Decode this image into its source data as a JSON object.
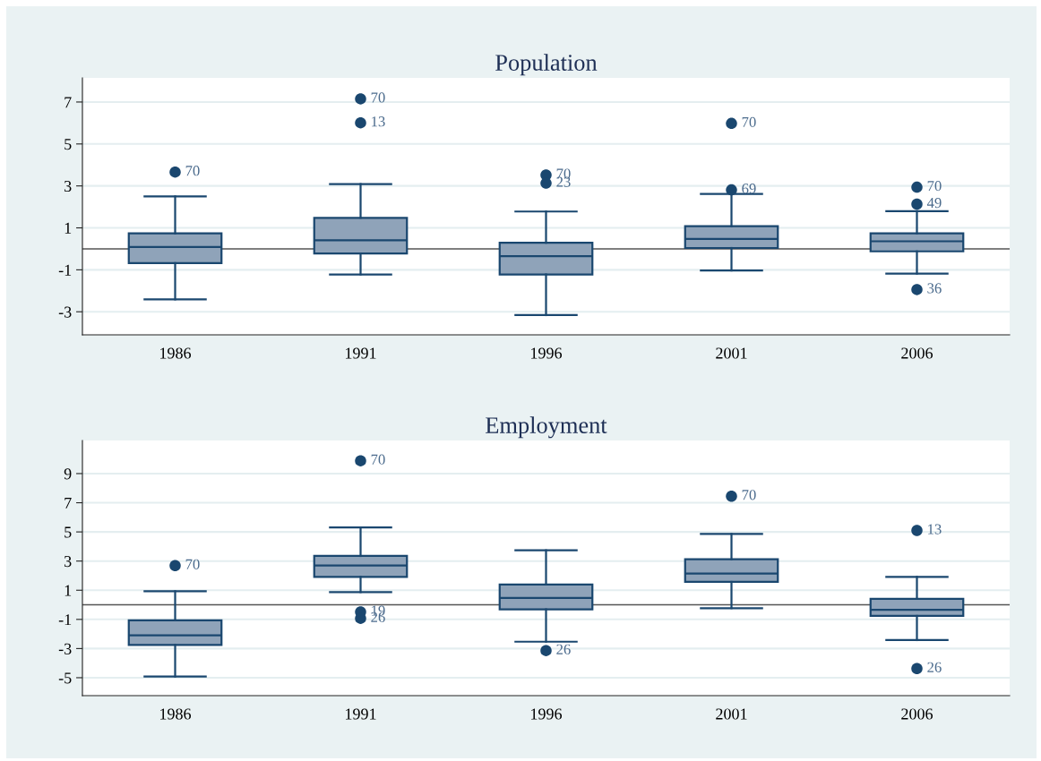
{
  "chart_data": [
    {
      "type": "box",
      "title": "Population",
      "categories": [
        "1986",
        "1991",
        "1996",
        "2001",
        "2006"
      ],
      "color": "#8fa3b9",
      "boxes": [
        {
          "low": -2.41,
          "q1": -0.68,
          "median": 0.09,
          "q3": 0.74,
          "high": 2.5,
          "outliers": [
            3.66
          ]
        },
        {
          "low": -1.22,
          "q1": -0.22,
          "median": 0.41,
          "q3": 1.48,
          "high": 3.09,
          "outliers": [
            7.15,
            6.01
          ]
        },
        {
          "low": -3.16,
          "q1": -1.22,
          "median": -0.35,
          "q3": 0.29,
          "high": 1.78,
          "outliers": [
            3.52,
            3.13
          ]
        },
        {
          "low": -1.03,
          "q1": 0.04,
          "median": 0.47,
          "q3": 1.08,
          "high": 2.62,
          "outliers": [
            5.98,
            2.81
          ]
        },
        {
          "low": -1.18,
          "q1": -0.12,
          "median": 0.36,
          "q3": 0.74,
          "high": 1.8,
          "outliers": [
            2.94,
            2.13,
            -1.94
          ]
        }
      ],
      "ylim": [
        -4.1,
        8.15
      ],
      "yticks": [
        -3,
        -1,
        1,
        3,
        5,
        7
      ],
      "grid": "y",
      "ref_lines": [
        {
          "axis": "y",
          "value": 0,
          "color": "#555555"
        }
      ],
      "annotations": [
        "70",
        "70",
        "13",
        "70",
        "23",
        "70",
        "69",
        "70",
        "49",
        "36"
      ]
    },
    {
      "type": "box",
      "title": "Employment",
      "categories": [
        "1986",
        "1991",
        "1996",
        "2001",
        "2006"
      ],
      "color": "#8fa3b9",
      "boxes": [
        {
          "low": -4.92,
          "q1": -2.75,
          "median": -2.09,
          "q3": -1.06,
          "high": 0.93,
          "outliers": [
            2.69
          ]
        },
        {
          "low": 0.87,
          "q1": 1.92,
          "median": 2.69,
          "q3": 3.35,
          "high": 5.3,
          "outliers": [
            9.88,
            -0.49,
            -0.93
          ]
        },
        {
          "low": -2.53,
          "q1": -0.31,
          "median": 0.47,
          "q3": 1.39,
          "high": 3.74,
          "outliers": [
            -3.14
          ]
        },
        {
          "low": -0.23,
          "q1": 1.57,
          "median": 2.14,
          "q3": 3.13,
          "high": 4.86,
          "outliers": [
            7.45
          ]
        },
        {
          "low": -2.42,
          "q1": -0.76,
          "median": -0.34,
          "q3": 0.41,
          "high": 1.92,
          "outliers": [
            5.1,
            -4.37
          ]
        }
      ],
      "ylim": [
        -6.23,
        11.27
      ],
      "yticks": [
        -5,
        -3,
        -1,
        1,
        3,
        5,
        7,
        9
      ],
      "grid": "y",
      "ref_lines": [
        {
          "axis": "y",
          "value": 0,
          "color": "#555555"
        }
      ],
      "annotations": [
        "70",
        "70",
        "19",
        "26",
        "26",
        "70",
        "13",
        "26"
      ]
    }
  ]
}
